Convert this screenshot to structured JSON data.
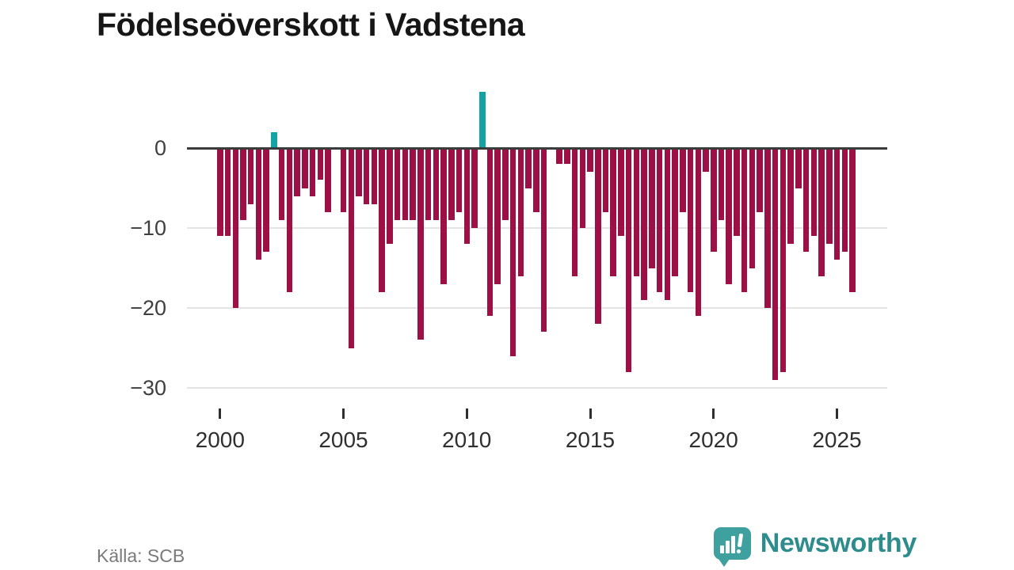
{
  "title": "Födelseöverskott i Vadstena",
  "source": "Källa: SCB",
  "brand": {
    "name": "Newsworthy"
  },
  "colors": {
    "negative_bar": "#9d1045",
    "positive_bar": "#12a3a2",
    "zero_axis": "#3b3b3b",
    "grid": "#e4e4e4",
    "brand_teal": "#2e8c8c",
    "bubble_teal": "#3fa0a0"
  },
  "chart_data": {
    "type": "bar",
    "title": "Födelseöverskott i Vadstena",
    "period": "2000–2025",
    "ylabel": "",
    "xlabel": "",
    "ylim": [
      -30,
      8
    ],
    "grid": true,
    "y_ticks": [
      0,
      -10,
      -20,
      -30
    ],
    "y_tick_labels": [
      "0",
      "−10",
      "−20",
      "−30"
    ],
    "x_tick_labels": [
      "2000",
      "2005",
      "2010",
      "2015",
      "2020",
      "2025"
    ],
    "x_tick_bar_index": [
      0,
      16,
      32,
      48,
      64,
      80
    ],
    "values": [
      -11,
      -11,
      -20,
      -9,
      -7,
      -14,
      -13,
      2,
      -9,
      -18,
      -6,
      -5,
      -6,
      -4,
      -8,
      0,
      -8,
      -25,
      -6,
      -7,
      -7,
      -18,
      -12,
      -9,
      -9,
      -9,
      -24,
      -9,
      -9,
      -17,
      -9,
      -8,
      -12,
      -10,
      7,
      -21,
      -17,
      -9,
      -26,
      -16,
      -5,
      -8,
      -23,
      0,
      -2,
      -2,
      -16,
      -10,
      -3,
      -22,
      -8,
      -16,
      -11,
      -28,
      -16,
      -19,
      -15,
      -18,
      -19,
      -16,
      -8,
      -18,
      -21,
      -3,
      -13,
      -9,
      -17,
      -11,
      -18,
      -15,
      -8,
      -20,
      -29,
      -28,
      -12,
      -5,
      -13,
      -11,
      -16,
      -12,
      -14,
      -13,
      -18
    ]
  }
}
